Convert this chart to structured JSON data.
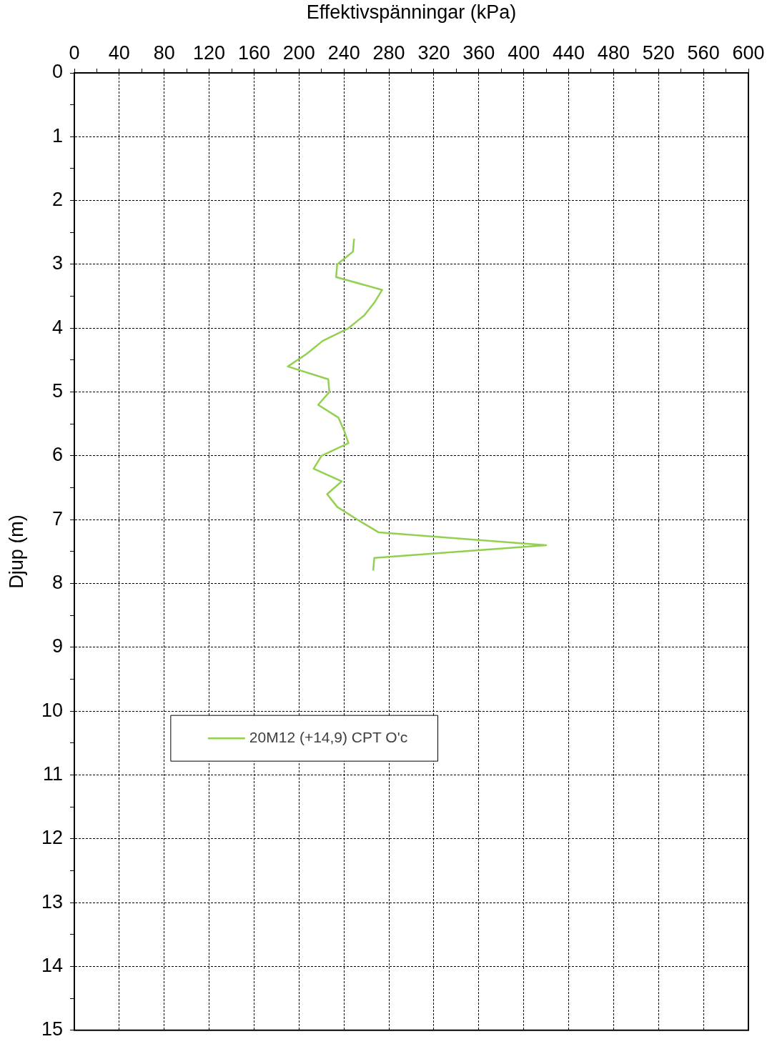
{
  "chart_data": {
    "type": "line",
    "xlabel": "Effektivspänningar (kPa)",
    "ylabel": "Djup (m)",
    "x": [
      249,
      248,
      234,
      233,
      274,
      267,
      258,
      244,
      221,
      207,
      190,
      226,
      227,
      217,
      235,
      240,
      244,
      220,
      213,
      238,
      225,
      234,
      252,
      271,
      420,
      267,
      266
    ],
    "series": [
      {
        "name": "20M12 (+14,9) CPT O'c",
        "color": "#92d050",
        "values": [
          2.6,
          2.8,
          3.0,
          3.2,
          3.4,
          3.6,
          3.8,
          4.0,
          4.2,
          4.4,
          4.6,
          4.8,
          5.0,
          5.2,
          5.4,
          5.6,
          5.8,
          6.0,
          6.2,
          6.4,
          6.6,
          6.8,
          7.0,
          7.2,
          7.4,
          7.6,
          7.8
        ]
      }
    ],
    "xlim": [
      0,
      600
    ],
    "xticks": [
      0,
      {
        "value": 20,
        "label": null
      },
      40,
      {
        "value": 60,
        "label": null
      },
      80,
      {
        "value": 100,
        "label": null
      },
      120,
      {
        "value": 140,
        "label": null
      },
      160,
      {
        "value": 180,
        "label": null
      },
      200,
      {
        "value": 220,
        "label": null
      },
      240,
      {
        "value": 260,
        "label": null
      },
      280,
      {
        "value": 300,
        "label": null
      },
      320,
      {
        "value": 340,
        "label": null
      },
      360,
      {
        "value": 380,
        "label": null
      },
      400,
      {
        "value": 420,
        "label": null
      },
      440,
      {
        "value": 460,
        "label": null
      },
      480,
      {
        "value": 500,
        "label": null
      },
      520,
      {
        "value": 540,
        "label": null
      },
      560,
      {
        "value": 580,
        "label": null
      },
      600
    ],
    "ylim": [
      15,
      0
    ],
    "yticks": [
      0,
      {
        "value": 0.5,
        "label": null
      },
      1,
      {
        "value": 1.5,
        "label": null
      },
      2,
      {
        "value": 2.5,
        "label": null
      },
      3,
      {
        "value": 3.5,
        "label": null
      },
      4,
      {
        "value": 4.5,
        "label": null
      },
      5,
      {
        "value": 5.5,
        "label": null
      },
      6,
      {
        "value": 6.5,
        "label": null
      },
      7,
      {
        "value": 7.5,
        "label": null
      },
      8,
      {
        "value": 8.5,
        "label": null
      },
      9,
      {
        "value": 9.5,
        "label": null
      },
      10,
      {
        "value": 10.5,
        "label": null
      },
      11,
      {
        "value": 11.5,
        "label": null
      },
      12,
      {
        "value": 12.5,
        "label": null
      },
      13,
      {
        "value": 13.5,
        "label": null
      },
      14,
      {
        "value": 14.5,
        "label": null
      },
      15
    ],
    "grid": true,
    "legend": "left",
    "line_style": "solid",
    "marker": "none"
  }
}
